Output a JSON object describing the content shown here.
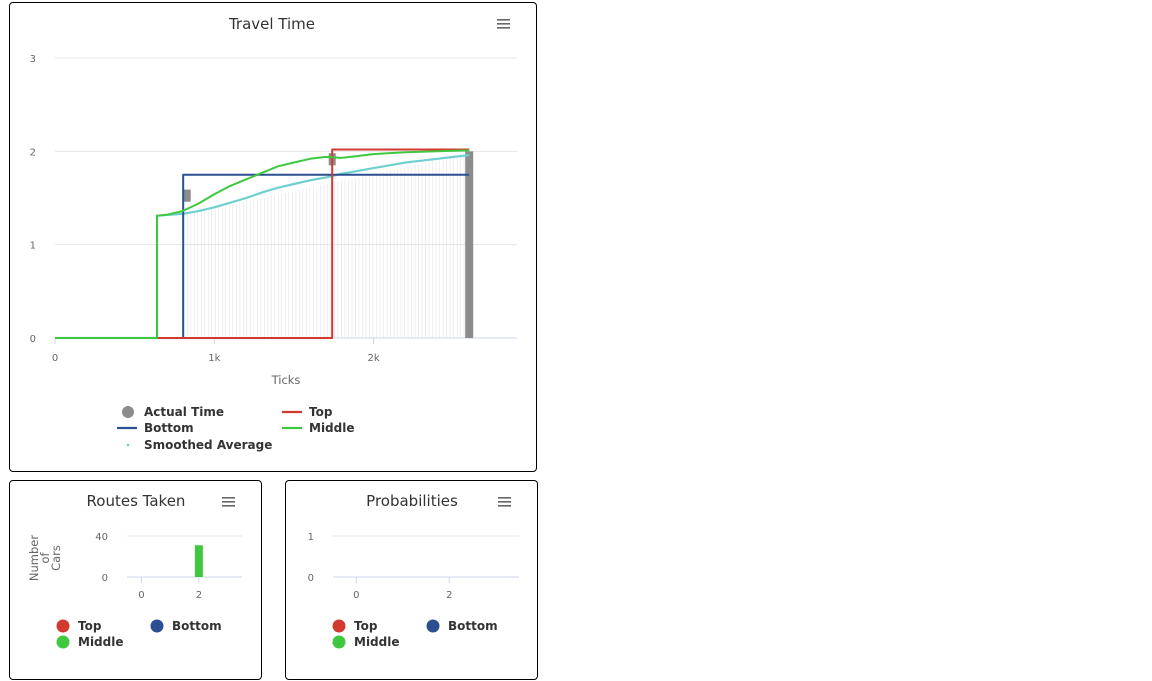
{
  "colors": {
    "actual": "#8c8c8c",
    "top": "#d33a2f",
    "bottom": "#2b4f91",
    "middle": "#3fc83f",
    "smoothed": "#6fcfd0",
    "grid": "#e6e6e6",
    "axis": "#ccd6eb"
  },
  "menu_icon": "hamburger-menu-icon",
  "chart_data": [
    {
      "id": "travel",
      "type": "line",
      "title": "Travel Time",
      "xlabel": "Ticks",
      "ylabel": "",
      "xlim": [
        0,
        2900
      ],
      "ylim": [
        0,
        3
      ],
      "x_ticks": [
        0,
        1000,
        2000
      ],
      "x_tick_labels": [
        "0",
        "1k",
        "2k"
      ],
      "y_ticks": [
        0,
        1,
        2,
        3
      ],
      "y_tick_labels": [
        "0",
        "1",
        "2",
        "3"
      ],
      "grid": true,
      "legend": "bottom",
      "legend_items": [
        {
          "key": "actual",
          "label": "Actual Time",
          "marker": "circle"
        },
        {
          "key": "top",
          "label": "Top",
          "marker": "line"
        },
        {
          "key": "bottom",
          "label": "Bottom",
          "marker": "line"
        },
        {
          "key": "middle",
          "label": "Middle",
          "marker": "line"
        },
        {
          "key": "smoothed",
          "label": "Smoothed Average",
          "marker": "dot"
        }
      ],
      "series": [
        {
          "key": "top",
          "name": "Top",
          "points": [
            [
              0,
              0
            ],
            [
              1740,
              0
            ],
            [
              1740,
              2.02
            ],
            [
              2600,
              2.02
            ]
          ]
        },
        {
          "key": "bottom",
          "name": "Bottom",
          "points": [
            [
              0,
              0
            ],
            [
              805,
              0
            ],
            [
              805,
              1.75
            ],
            [
              2600,
              1.75
            ]
          ]
        },
        {
          "key": "middle",
          "name": "Middle",
          "points": [
            [
              0,
              0
            ],
            [
              640,
              0
            ],
            [
              640,
              1.31
            ],
            [
              700,
              1.32
            ],
            [
              800,
              1.36
            ],
            [
              900,
              1.44
            ],
            [
              1000,
              1.54
            ],
            [
              1100,
              1.63
            ],
            [
              1200,
              1.7
            ],
            [
              1300,
              1.77
            ],
            [
              1400,
              1.84
            ],
            [
              1500,
              1.88
            ],
            [
              1600,
              1.92
            ],
            [
              1700,
              1.94
            ],
            [
              1800,
              1.93
            ],
            [
              1900,
              1.95
            ],
            [
              2000,
              1.97
            ],
            [
              2200,
              1.99
            ],
            [
              2400,
              2.0
            ],
            [
              2600,
              2.01
            ]
          ]
        },
        {
          "key": "smoothed",
          "name": "Smoothed Average",
          "points": [
            [
              0,
              0
            ],
            [
              640,
              0
            ],
            [
              640,
              1.31
            ],
            [
              800,
              1.33
            ],
            [
              900,
              1.36
            ],
            [
              1000,
              1.4
            ],
            [
              1100,
              1.45
            ],
            [
              1200,
              1.5
            ],
            [
              1300,
              1.56
            ],
            [
              1400,
              1.61
            ],
            [
              1500,
              1.65
            ],
            [
              1600,
              1.69
            ],
            [
              1700,
              1.72
            ],
            [
              1800,
              1.76
            ],
            [
              1900,
              1.79
            ],
            [
              2000,
              1.82
            ],
            [
              2100,
              1.85
            ],
            [
              2200,
              1.88
            ],
            [
              2300,
              1.9
            ],
            [
              2400,
              1.92
            ],
            [
              2500,
              1.94
            ],
            [
              2600,
              1.96
            ]
          ]
        }
      ],
      "actual_bars": [
        {
          "x": 830,
          "y": 1.59
        },
        {
          "x": 1740,
          "y": 1.98
        },
        {
          "x": 2600,
          "y": 2.0
        }
      ]
    },
    {
      "id": "routes",
      "type": "bar",
      "title": "Routes Taken",
      "xlabel": "",
      "ylabel": "Number of Cars",
      "ylabel_lines": [
        "Number",
        "of",
        "Cars"
      ],
      "xlim": [
        -0.5,
        3.5
      ],
      "ylim": [
        0,
        40
      ],
      "x_ticks": [
        0,
        2
      ],
      "x_tick_labels": [
        "0",
        "2"
      ],
      "y_ticks": [
        0,
        40
      ],
      "y_tick_labels": [
        "0",
        "40"
      ],
      "grid": true,
      "legend": "bottom",
      "legend_items": [
        {
          "key": "top",
          "label": "Top"
        },
        {
          "key": "bottom",
          "label": "Bottom"
        },
        {
          "key": "middle",
          "label": "Middle"
        }
      ],
      "bars": [
        {
          "key": "middle",
          "x": 2,
          "value": 31
        }
      ]
    },
    {
      "id": "prob",
      "type": "line",
      "title": "Probabilities",
      "xlabel": "",
      "ylabel": "",
      "xlim": [
        -0.5,
        3.5
      ],
      "ylim": [
        0,
        1
      ],
      "x_ticks": [
        0,
        2
      ],
      "x_tick_labels": [
        "0",
        "2"
      ],
      "y_ticks": [
        0,
        1
      ],
      "y_tick_labels": [
        "0",
        "1"
      ],
      "grid": true,
      "legend": "bottom",
      "legend_items": [
        {
          "key": "top",
          "label": "Top"
        },
        {
          "key": "bottom",
          "label": "Bottom"
        },
        {
          "key": "middle",
          "label": "Middle"
        }
      ],
      "series": []
    }
  ]
}
